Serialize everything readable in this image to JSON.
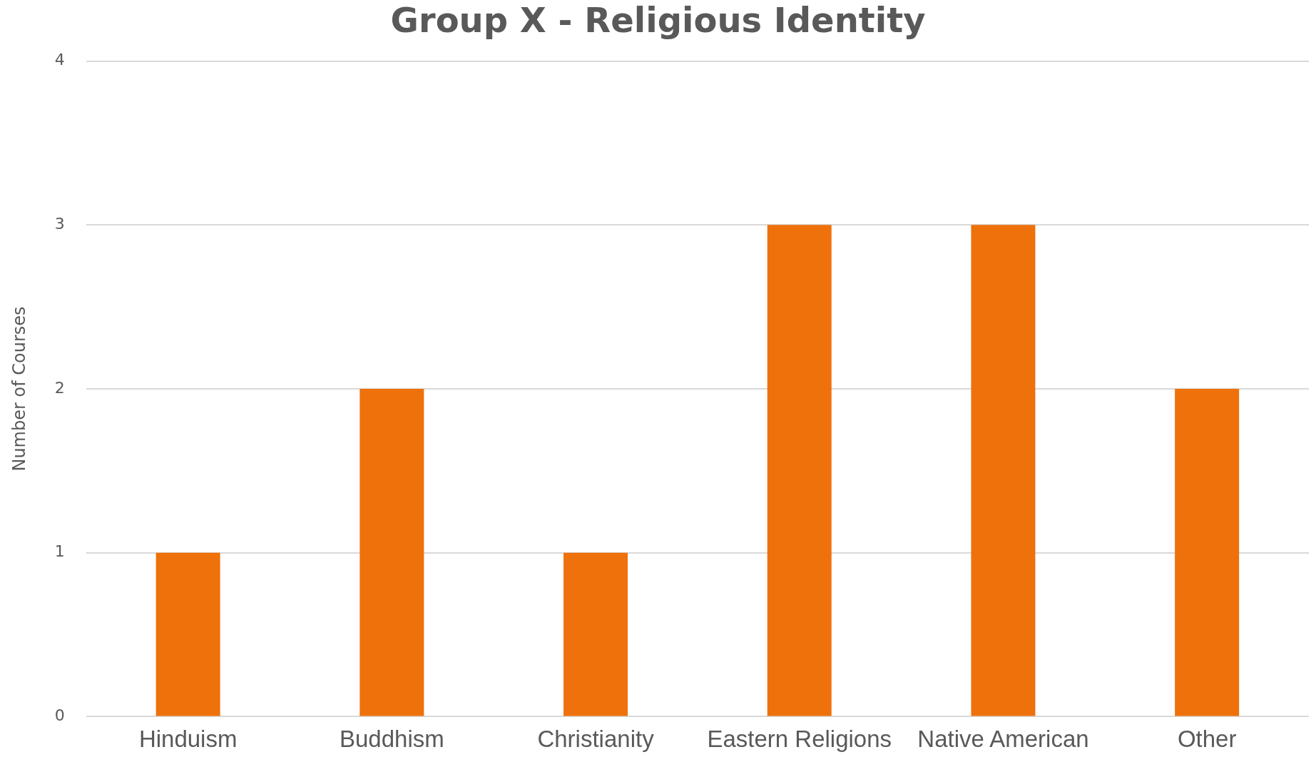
{
  "chart_data": {
    "type": "bar",
    "title": "Group X - Religious Identity",
    "ylabel": "Number of Courses",
    "categories": [
      "Hinduism",
      "Buddhism",
      "Christianity",
      "Eastern Religions",
      "Native American",
      "Other"
    ],
    "values": [
      1,
      2,
      1,
      3,
      3,
      2
    ],
    "color": "#ee710b",
    "ylim": [
      0,
      4
    ],
    "yticks": [
      0,
      1,
      2,
      3,
      4
    ],
    "grid": "y",
    "legend": false
  }
}
